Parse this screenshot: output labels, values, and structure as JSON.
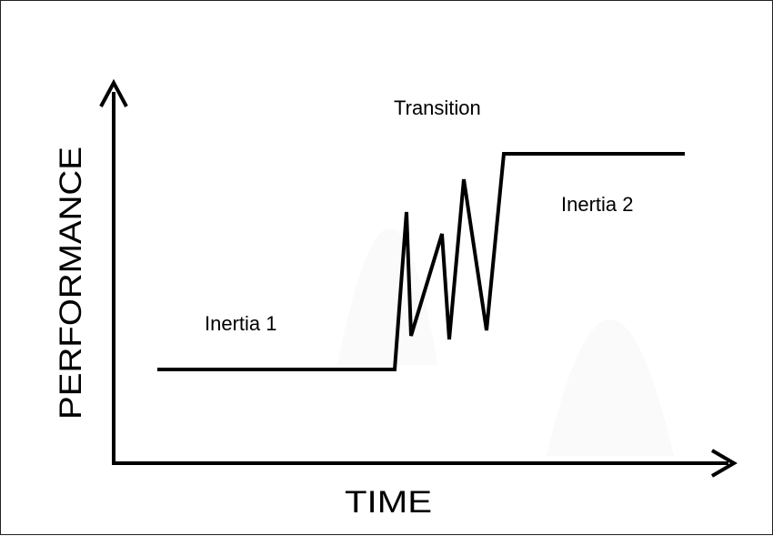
{
  "diagram": {
    "y_axis_label": "PERFORMANCE",
    "x_axis_label": "TIME",
    "annotations": {
      "inertia_1": "Inertia 1",
      "transition": "Transition",
      "inertia_2": "Inertia 2"
    },
    "line_color": "#000000",
    "background_color": "#ffffff"
  }
}
